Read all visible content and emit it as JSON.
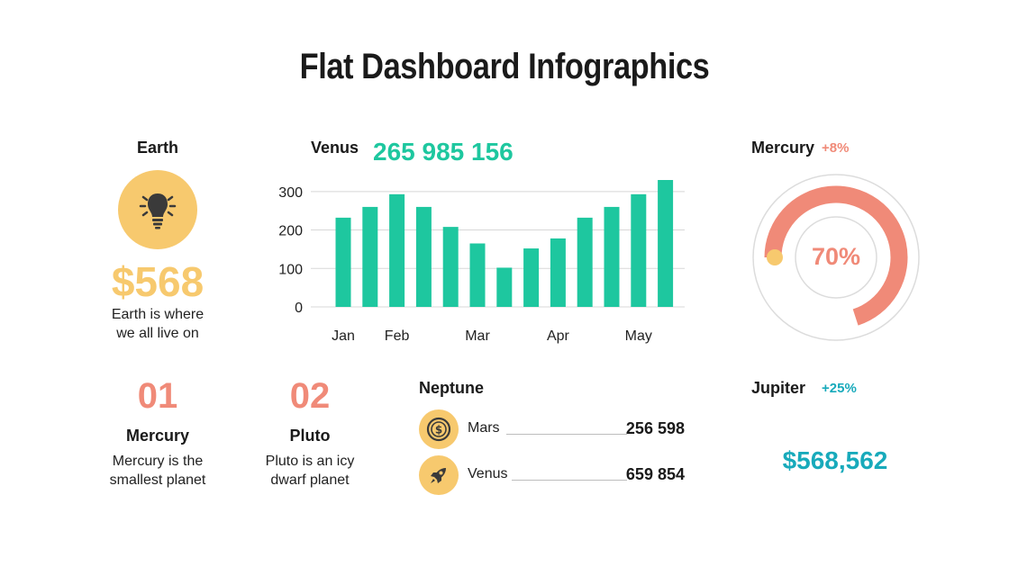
{
  "title": "Flat Dashboard Infographics",
  "earth": {
    "label": "Earth",
    "icon": "lightbulb-icon",
    "value": "$568",
    "desc_line1": "Earth is where",
    "desc_line2": "we all live on"
  },
  "venus_chart": {
    "label": "Venus",
    "total": "265 985 156"
  },
  "mercury_gauge": {
    "label": "Mercury",
    "change": "+8%",
    "percent_label": "70%",
    "fraction": 0.7
  },
  "items": [
    {
      "number": "01",
      "name": "Mercury",
      "desc_line1": "Mercury is the",
      "desc_line2": "smallest planet"
    },
    {
      "number": "02",
      "name": "Pluto",
      "desc_line1": "Pluto is an icy",
      "desc_line2": "dwarf planet"
    }
  ],
  "neptune": {
    "label": "Neptune",
    "rows": [
      {
        "icon": "dollar-coin-icon",
        "name": "Mars",
        "value": "256 598"
      },
      {
        "icon": "rocket-icon",
        "name": "Venus",
        "value": "659 854"
      }
    ]
  },
  "jupiter": {
    "label": "Jupiter",
    "change": "+25%",
    "value": "$568,562"
  },
  "colors": {
    "bar": "#1ec79f",
    "yellow": "#f7c96e",
    "coral": "#f08a78",
    "cyan": "#18aabb",
    "grid": "#d8d8d8"
  },
  "chart_data": {
    "type": "bar",
    "categories": [
      "Jan",
      "",
      "Feb",
      "",
      "",
      "Mar",
      "",
      "",
      "Apr",
      "",
      "",
      "May",
      ""
    ],
    "x_tick_labels": [
      "Jan",
      "Feb",
      "Mar",
      "Apr",
      "May"
    ],
    "values": [
      232,
      260,
      293,
      260,
      208,
      165,
      102,
      152,
      178,
      232,
      260,
      293,
      330
    ],
    "y_ticks": [
      0,
      100,
      200,
      300
    ],
    "ylim": [
      0,
      330
    ],
    "grid": true,
    "title": "",
    "xlabel": "",
    "ylabel": ""
  }
}
